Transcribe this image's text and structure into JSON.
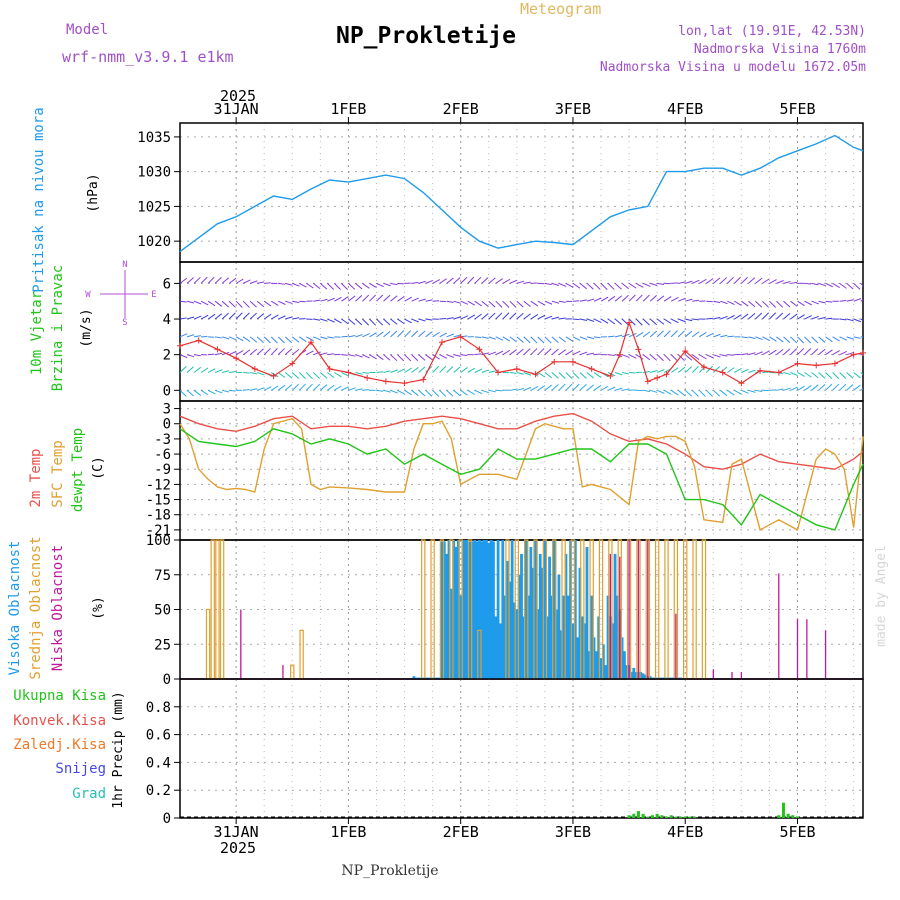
{
  "header": {
    "meteogram_label": "Meteogram",
    "title": "NP_Prokletije",
    "model_label": "Model",
    "model_value": "wrf-nmm_v3.9.1  e1km",
    "location": "lon,lat (19.91E, 42.53N)",
    "altitude": "Nadmorska Visina 1760m",
    "model_altitude": "Nadmorska Visina u modelu 1672.05m",
    "footer": "NP_Prokletije",
    "watermark": "made by Angel"
  },
  "time_axis": {
    "year": "2025",
    "days": [
      {
        "label": "31JAN",
        "t": 0
      },
      {
        "label": "1FEB",
        "t": 24
      },
      {
        "label": "2FEB",
        "t": 48
      },
      {
        "label": "3FEB",
        "t": 72
      },
      {
        "label": "4FEB",
        "t": 96
      },
      {
        "label": "5FEB",
        "t": 120
      }
    ],
    "range_hours": [
      -12,
      134
    ]
  },
  "colors": {
    "pressure": "#1e9bea",
    "temp2m": "#e8504a",
    "sfc_temp": "#e0a030",
    "dewpoint": "#22c41a",
    "high_cloud": "#1e9bea",
    "mid_cloud": "#e0a030",
    "low_cloud": "#c0189a",
    "total_precip": "#22c41a",
    "conv_precip": "#e8504a",
    "frozen_precip": "#f07a28",
    "snow": "#4848e8",
    "graupel": "#28c0b0",
    "wind_dir": "#b050d0",
    "wind_speed": "#e83030"
  },
  "panels": {
    "pressure": {
      "label": "Pritisak na nivou mora",
      "unit": "(hPa)"
    },
    "wind": {
      "label1": "10m Vjetar",
      "label2": "Brzina i Pravac",
      "unit": "(m/s)",
      "compass": {
        "n": "N",
        "s": "S",
        "w": "W",
        "e": "E"
      }
    },
    "temp": {
      "label1": "2m Temp",
      "label2": "SFC Temp",
      "label3": "dewpt Temp",
      "unit": "(C)"
    },
    "cloud": {
      "label1": "Visoka Oblacnost",
      "label2": "Srednja Oblacnost",
      "label3": "Niska Oblacnost",
      "unit": "(%)"
    },
    "precip": {
      "labels": [
        "Ukupna Kisa",
        "Konvek.Kisa",
        "Zaledj.Kisa",
        "Snijeg",
        "Grad"
      ],
      "axis_label": "1hr Precip (mm)"
    }
  },
  "chart_data": [
    {
      "type": "line",
      "title": "Pritisak na nivou mora",
      "ylabel": "(hPa)",
      "ylim": [
        1017,
        1037
      ],
      "yticks": [
        1020,
        1025,
        1030,
        1035
      ],
      "grid": true,
      "series": [
        {
          "name": "Pritisak na nivou mora",
          "x": [
            -12,
            -8,
            -4,
            0,
            4,
            8,
            12,
            16,
            20,
            24,
            28,
            32,
            36,
            40,
            44,
            48,
            52,
            56,
            60,
            64,
            68,
            72,
            76,
            80,
            84,
            88,
            92,
            96,
            100,
            104,
            108,
            112,
            116,
            120,
            124,
            128,
            132,
            134
          ],
          "y": [
            1018.5,
            1020.5,
            1022.5,
            1023.5,
            1025,
            1026.5,
            1026,
            1027.5,
            1028.8,
            1028.5,
            1029,
            1029.5,
            1029,
            1027,
            1024.5,
            1022,
            1020,
            1019,
            1019.5,
            1020,
            1019.8,
            1019.5,
            1021.5,
            1023.5,
            1024.5,
            1025,
            1030,
            1030,
            1030.5,
            1030.5,
            1029.5,
            1030.5,
            1032,
            1033,
            1034,
            1035.2,
            1033.5,
            1033
          ]
        }
      ]
    },
    {
      "type": "line",
      "title": "10m Vjetar Brzina i Pravac",
      "ylabel": "(m/s)",
      "ylim": [
        -0.6,
        7.2
      ],
      "yticks": [
        0,
        2,
        4,
        6
      ],
      "grid": true,
      "series": [
        {
          "name": "Brzina",
          "x": [
            -12,
            -8,
            -4,
            0,
            4,
            8,
            12,
            16,
            20,
            24,
            28,
            32,
            36,
            40,
            44,
            48,
            52,
            56,
            60,
            64,
            68,
            72,
            76,
            80,
            82,
            84,
            86,
            88,
            90,
            92,
            96,
            100,
            104,
            108,
            112,
            116,
            120,
            124,
            128,
            132,
            134
          ],
          "y": [
            2.5,
            2.8,
            2.3,
            1.8,
            1.2,
            0.8,
            1.5,
            2.7,
            1.2,
            1.0,
            0.7,
            0.5,
            0.4,
            0.6,
            2.7,
            3.0,
            2.3,
            1.0,
            1.2,
            0.9,
            1.6,
            1.6,
            1.2,
            0.8,
            2.0,
            3.8,
            2.3,
            0.5,
            0.7,
            0.9,
            2.2,
            1.3,
            1.0,
            0.4,
            1.1,
            1.0,
            1.5,
            1.4,
            1.5,
            2.0,
            2.1
          ]
        }
      ]
    },
    {
      "type": "line",
      "title": "Temperatura",
      "ylabel": "(C)",
      "ylim": [
        -23,
        4.5
      ],
      "yticks": [
        3,
        0,
        -3,
        -6,
        -9,
        -12,
        -15,
        -18,
        -21
      ],
      "grid": true,
      "series": [
        {
          "name": "2m Temp",
          "x": [
            -12,
            -8,
            -4,
            0,
            4,
            8,
            12,
            16,
            20,
            24,
            28,
            32,
            36,
            40,
            44,
            48,
            52,
            56,
            60,
            64,
            68,
            72,
            76,
            80,
            84,
            88,
            92,
            96,
            100,
            104,
            108,
            112,
            116,
            120,
            124,
            128,
            132,
            134
          ],
          "y": [
            1.5,
            0,
            -1,
            -1.5,
            -0.5,
            1,
            1.5,
            -1,
            -0.5,
            -0.5,
            -1,
            -0.5,
            0.5,
            1,
            1.5,
            1,
            0,
            -1,
            -1,
            0.5,
            1.5,
            2,
            0.5,
            -2,
            -3.5,
            -3,
            -4,
            -6,
            -8.5,
            -9,
            -8,
            -6,
            -7.5,
            -8,
            -8.5,
            -9,
            -7,
            -5.5
          ]
        },
        {
          "name": "SFC Temp",
          "x": [
            -12,
            -10,
            -8,
            -6,
            -4,
            -2,
            0,
            2,
            4,
            6,
            8,
            10,
            12,
            14,
            16,
            18,
            20,
            24,
            28,
            32,
            36,
            38,
            40,
            42,
            44,
            46,
            48,
            50,
            52,
            56,
            60,
            64,
            66,
            68,
            70,
            72,
            74,
            76,
            80,
            84,
            86,
            88,
            90,
            92,
            94,
            96,
            98,
            100,
            104,
            106,
            108,
            112,
            116,
            120,
            124,
            126,
            128,
            130,
            132,
            134
          ],
          "y": [
            0,
            -3,
            -9,
            -11,
            -12.5,
            -13,
            -12.8,
            -13,
            -13.5,
            -5,
            0,
            0.5,
            1,
            -1,
            -12,
            -13,
            -12.5,
            -12.7,
            -13,
            -13.5,
            -13.5,
            -5,
            0,
            0,
            0.5,
            -3,
            -12,
            -11,
            -10,
            -10,
            -11,
            -1,
            0,
            -0.5,
            -1,
            -1,
            -12.5,
            -12,
            -13,
            -16,
            -3.5,
            -2.5,
            -3,
            -2.5,
            -2.5,
            -3.5,
            -8.5,
            -19,
            -19.5,
            -8,
            -7,
            -21,
            -19,
            -21,
            -7,
            -5,
            -6,
            -9,
            -20.5,
            -2.5
          ]
        },
        {
          "name": "dewpt Temp",
          "x": [
            -12,
            -8,
            -4,
            0,
            4,
            8,
            12,
            16,
            20,
            24,
            28,
            32,
            36,
            40,
            44,
            48,
            52,
            56,
            60,
            64,
            68,
            72,
            76,
            80,
            84,
            88,
            92,
            96,
            100,
            104,
            108,
            112,
            116,
            120,
            124,
            128,
            132,
            134
          ],
          "y": [
            -1,
            -3.5,
            -4,
            -4.5,
            -3.5,
            -1,
            -2,
            -4,
            -3,
            -4,
            -6,
            -5,
            -8,
            -6,
            -8,
            -10,
            -9,
            -5,
            -7,
            -7,
            -6,
            -5,
            -5,
            -7.5,
            -4,
            -4,
            -6,
            -15,
            -15,
            -16,
            -20,
            -14,
            -16,
            -18,
            -20,
            -21,
            -12,
            -8
          ]
        }
      ]
    },
    {
      "type": "bar",
      "title": "Oblacnost",
      "ylabel": "(%)",
      "ylim": [
        0,
        100
      ],
      "yticks": [
        0,
        25,
        50,
        75,
        100
      ],
      "grid": true,
      "series": [
        {
          "name": "Visoka Oblacnost",
          "x": [
            38,
            38.5,
            39,
            39.5,
            40,
            40.5,
            41,
            41.5,
            42,
            42.5,
            43,
            43.5,
            44,
            44.5,
            45,
            45.5,
            46,
            46.5,
            47,
            47.5,
            48,
            48.5,
            49,
            49.5,
            50,
            50.5,
            51,
            51.5,
            52,
            52.5,
            53,
            53.5,
            54,
            54.5,
            55,
            55.5,
            56,
            56.5,
            57,
            57.5,
            58,
            58.5,
            59,
            59.5,
            60,
            60.5,
            61,
            61.5,
            62,
            62.5,
            63,
            63.5,
            64,
            64.5,
            65,
            65.5,
            66,
            66.5,
            67,
            67.5,
            68,
            68.5,
            69,
            69.5,
            70,
            70.5,
            71,
            71.5,
            72,
            72.5,
            73,
            73.5,
            74,
            74.5,
            75,
            75.5,
            76,
            76.5,
            77,
            77.5,
            78,
            78.5,
            79,
            79.5,
            80,
            80.5,
            81,
            81.5,
            82,
            82.5,
            83,
            83.5,
            84,
            84.5,
            85,
            85.5,
            86,
            86.5,
            87,
            87.5,
            88,
            88.5,
            89,
            89.5,
            90,
            90.5,
            91,
            91.5,
            92,
            92.5,
            93,
            93.5,
            94,
            94.5,
            95
          ],
          "y": [
            2,
            1,
            1,
            1,
            1,
            1,
            1,
            1,
            1,
            1,
            1,
            1,
            99,
            99,
            90,
            100,
            65,
            100,
            95,
            100,
            60,
            100,
            100,
            100,
            99,
            99,
            100,
            99,
            100,
            99,
            100,
            100,
            98,
            100,
            99,
            45,
            100,
            40,
            100,
            60,
            85,
            70,
            100,
            55,
            50,
            75,
            90,
            45,
            100,
            60,
            95,
            80,
            100,
            50,
            90,
            80,
            100,
            45,
            88,
            60,
            100,
            50,
            75,
            35,
            60,
            90,
            60,
            100,
            40,
            100,
            30,
            80,
            45,
            40,
            95,
            20,
            60,
            30,
            20,
            45,
            15,
            25,
            10,
            60,
            45,
            40,
            90,
            60,
            50,
            30,
            20,
            10,
            10,
            5,
            8,
            5,
            5,
            5,
            4,
            3,
            2,
            2,
            1,
            1,
            1,
            1,
            1,
            1,
            1,
            1,
            1,
            1,
            1,
            1,
            1
          ]
        },
        {
          "name": "Srednja Oblacnost",
          "x": [
            -6,
            -5,
            -4,
            -3,
            0,
            8,
            10,
            12,
            14,
            18,
            20,
            22,
            24,
            26,
            28,
            30,
            32,
            34,
            36,
            40,
            42,
            44,
            46,
            48,
            50,
            52,
            54,
            56,
            58,
            60,
            62,
            64,
            66,
            68,
            70,
            72,
            74,
            76,
            78,
            80,
            82,
            84,
            86,
            88,
            90,
            92,
            94,
            96,
            98,
            100
          ],
          "y": [
            50,
            100,
            100,
            100,
            0,
            0,
            0,
            10,
            35,
            0,
            0,
            0,
            0,
            0,
            0,
            0,
            0,
            0,
            0,
            100,
            100,
            100,
            100,
            100,
            100,
            35,
            0,
            0,
            100,
            100,
            100,
            100,
            100,
            100,
            100,
            100,
            100,
            100,
            100,
            100,
            100,
            100,
            100,
            100,
            100,
            100,
            100,
            100,
            100,
            100
          ]
        },
        {
          "name": "Niska Oblacnost",
          "x": [
            -3,
            1,
            7,
            10,
            12,
            14,
            42,
            46,
            48,
            50,
            52,
            54,
            56,
            58,
            60,
            62,
            64,
            66,
            68,
            70,
            72,
            74,
            76,
            78,
            80,
            82,
            84,
            86,
            88,
            90,
            92,
            94,
            96,
            98,
            100,
            102,
            104,
            106,
            108,
            110,
            112,
            114,
            116,
            118,
            120,
            122,
            124,
            126,
            128,
            130,
            132,
            134
          ],
          "y": [
            0,
            50,
            0,
            10,
            0,
            0,
            0,
            0,
            0,
            0,
            0,
            0,
            0,
            0,
            0,
            0,
            0,
            0,
            0,
            0,
            0,
            0,
            0,
            0,
            90,
            88,
            100,
            100,
            100,
            0,
            0,
            47,
            0,
            0,
            0,
            7,
            0,
            5,
            5,
            0,
            0,
            0,
            76,
            0,
            43,
            43,
            0,
            35,
            0,
            0,
            0,
            0
          ]
        }
      ]
    },
    {
      "type": "bar",
      "title": "1hr Precip (mm)",
      "ylabel": "1hr Precip (mm)",
      "ylim": [
        0,
        1
      ],
      "yticks": [
        0,
        0.2,
        0.4,
        0.6,
        0.8
      ],
      "grid": true,
      "series": [
        {
          "name": "Ukupna Kisa",
          "x": [
            84,
            85,
            86,
            87,
            88,
            89,
            90,
            91,
            92,
            93,
            94,
            95,
            96,
            97,
            98,
            116,
            117,
            118,
            119,
            120
          ],
          "y": [
            0.02,
            0.03,
            0.05,
            0.03,
            0.01,
            0.02,
            0.03,
            0.02,
            0.01,
            0.02,
            0.01,
            0.01,
            0.01,
            0.01,
            0.01,
            0.02,
            0.11,
            0.03,
            0.02,
            0.01
          ]
        },
        {
          "name": "Konvek.Kisa",
          "x": [],
          "y": []
        },
        {
          "name": "Zaledj.Kisa",
          "x": [],
          "y": []
        },
        {
          "name": "Snijeg",
          "x": [],
          "y": []
        },
        {
          "name": "Grad",
          "x": [],
          "y": []
        }
      ]
    }
  ]
}
